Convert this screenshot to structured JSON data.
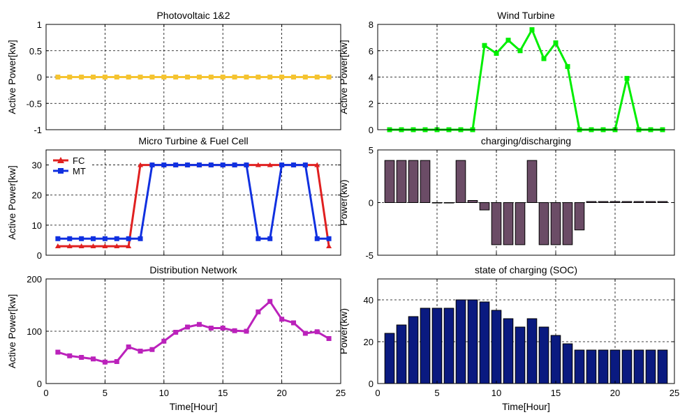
{
  "chart_data": [
    {
      "id": "pv",
      "type": "line",
      "title": "Photovoltaic 1&2",
      "xlabel": "",
      "ylabel": "Active Power[kw]",
      "xlim": [
        0,
        25
      ],
      "ylim": [
        -1,
        1
      ],
      "xticks": [
        0,
        5,
        10,
        15,
        20,
        25
      ],
      "xtick_labels": [],
      "yticks": [
        -1,
        -0.5,
        0,
        0.5,
        1
      ],
      "ytick_labels": [
        "-1",
        "-0.5",
        "0",
        "0.5",
        "1"
      ],
      "grid": true,
      "x": [
        1,
        2,
        3,
        4,
        5,
        6,
        7,
        8,
        9,
        10,
        11,
        12,
        13,
        14,
        15,
        16,
        17,
        18,
        19,
        20,
        21,
        22,
        23,
        24
      ],
      "series": [
        {
          "color": "#f5c431",
          "marker": "square",
          "values": [
            0,
            0,
            0,
            0,
            0,
            0,
            0,
            0,
            0,
            0,
            0,
            0,
            0,
            0,
            0,
            0,
            0,
            0,
            0,
            0,
            0,
            0,
            0,
            0
          ]
        }
      ]
    },
    {
      "id": "wind",
      "type": "line",
      "title": "Wind Turbine",
      "xlabel": "",
      "ylabel": "Active Power[kw]",
      "xlim": [
        0,
        25
      ],
      "ylim": [
        0,
        8
      ],
      "xticks": [
        0,
        5,
        10,
        15,
        20,
        25
      ],
      "xtick_labels": [],
      "yticks": [
        0,
        2,
        4,
        6,
        8
      ],
      "ytick_labels": [
        "0",
        "2",
        "4",
        "6",
        "8"
      ],
      "grid": true,
      "x": [
        1,
        2,
        3,
        4,
        5,
        6,
        7,
        8,
        9,
        10,
        11,
        12,
        13,
        14,
        15,
        16,
        17,
        18,
        19,
        20,
        21,
        22,
        23,
        24
      ],
      "series": [
        {
          "color": "#00ee00",
          "marker": "square",
          "values": [
            0,
            0,
            0,
            0,
            0,
            0,
            0,
            0,
            6.4,
            5.8,
            6.8,
            6.0,
            7.6,
            5.4,
            6.6,
            4.8,
            0,
            0,
            0,
            0,
            3.9,
            0,
            0,
            0
          ]
        }
      ]
    },
    {
      "id": "mtfc",
      "type": "line",
      "title": "Micro Turbine & Fuel Cell",
      "xlabel": "",
      "ylabel": "Active Power[kw]",
      "xlim": [
        0,
        25
      ],
      "ylim": [
        0,
        35
      ],
      "xticks": [
        0,
        5,
        10,
        15,
        20,
        25
      ],
      "xtick_labels": [],
      "yticks": [
        0,
        10,
        20,
        30
      ],
      "ytick_labels": [
        "0",
        "10",
        "20",
        "30"
      ],
      "grid": true,
      "legend": "top-left",
      "x": [
        1,
        2,
        3,
        4,
        5,
        6,
        7,
        8,
        9,
        10,
        11,
        12,
        13,
        14,
        15,
        16,
        17,
        18,
        19,
        20,
        21,
        22,
        23,
        24
      ],
      "series": [
        {
          "name": "FC",
          "color": "#e02020",
          "marker": "triangle",
          "values": [
            3,
            3,
            3,
            3,
            3,
            3,
            3,
            30,
            30,
            30,
            30,
            30,
            30,
            30,
            30,
            30,
            30,
            30,
            30,
            30,
            30,
            30,
            30,
            3
          ]
        },
        {
          "name": "MT",
          "color": "#1030e0",
          "marker": "square",
          "values": [
            5.5,
            5.5,
            5.5,
            5.5,
            5.5,
            5.5,
            5.5,
            5.5,
            30,
            30,
            30,
            30,
            30,
            30,
            30,
            30,
            30,
            5.5,
            5.5,
            30,
            30,
            30,
            5.5,
            5.5
          ]
        }
      ]
    },
    {
      "id": "charge",
      "type": "bar",
      "title": "charging/discharging",
      "xlabel": "",
      "ylabel": "Power(kw)",
      "xlim": [
        0,
        25
      ],
      "ylim": [
        -5,
        5
      ],
      "xticks": [
        0,
        5,
        10,
        15,
        20,
        25
      ],
      "xtick_labels": [],
      "yticks": [
        -5,
        0,
        5
      ],
      "ytick_labels": [
        "-5",
        "0",
        "5"
      ],
      "grid": true,
      "bar_color": "#6b4c66",
      "x": [
        1,
        2,
        3,
        4,
        5,
        6,
        7,
        8,
        9,
        10,
        11,
        12,
        13,
        14,
        15,
        16,
        17,
        18,
        19,
        20,
        21,
        22,
        23,
        24
      ],
      "values": [
        4,
        4,
        4,
        4,
        0,
        0,
        4,
        0.2,
        -0.7,
        -4,
        -4,
        -4,
        4,
        -4,
        -4,
        -4,
        -2.6,
        0.1,
        0.1,
        0.1,
        0.1,
        0.1,
        0.1,
        0.1
      ]
    },
    {
      "id": "dn",
      "type": "line",
      "title": "Distribution Network",
      "xlabel": "Time[Hour]",
      "ylabel": "Active Power[kw]",
      "xlim": [
        0,
        25
      ],
      "ylim": [
        0,
        200
      ],
      "xticks": [
        0,
        5,
        10,
        15,
        20,
        25
      ],
      "xtick_labels": [
        "0",
        "5",
        "10",
        "15",
        "20",
        "25"
      ],
      "yticks": [
        0,
        100,
        200
      ],
      "ytick_labels": [
        "0",
        "100",
        "200"
      ],
      "grid": true,
      "x": [
        1,
        2,
        3,
        4,
        5,
        6,
        7,
        8,
        9,
        10,
        11,
        12,
        13,
        14,
        15,
        16,
        17,
        18,
        19,
        20,
        21,
        22,
        23,
        24
      ],
      "series": [
        {
          "color": "#bb22bb",
          "marker": "square",
          "values": [
            60,
            53,
            50,
            47,
            41,
            42,
            70,
            62,
            65,
            81,
            98,
            108,
            113,
            106,
            106,
            101,
            100,
            137,
            157,
            123,
            116,
            96,
            99,
            86
          ]
        }
      ]
    },
    {
      "id": "soc",
      "type": "bar",
      "title": "state of charging (SOC)",
      "xlabel": "Time[Hour]",
      "ylabel": "Power(kw)",
      "xlim": [
        0,
        25
      ],
      "ylim": [
        0,
        50
      ],
      "xticks": [
        0,
        5,
        10,
        15,
        20,
        25
      ],
      "xtick_labels": [
        "0",
        "5",
        "10",
        "15",
        "20",
        "25"
      ],
      "yticks": [
        0,
        20,
        40
      ],
      "ytick_labels": [
        "0",
        "20",
        "40"
      ],
      "grid": true,
      "bar_color": "#0a1a80",
      "x": [
        1,
        2,
        3,
        4,
        5,
        6,
        7,
        8,
        9,
        10,
        11,
        12,
        13,
        14,
        15,
        16,
        17,
        18,
        19,
        20,
        21,
        22,
        23,
        24
      ],
      "values": [
        24,
        28,
        32,
        36,
        36,
        36,
        40,
        40,
        39,
        35,
        31,
        27,
        31,
        27,
        23,
        19,
        16,
        16,
        16,
        16,
        16,
        16,
        16,
        16
      ]
    }
  ]
}
